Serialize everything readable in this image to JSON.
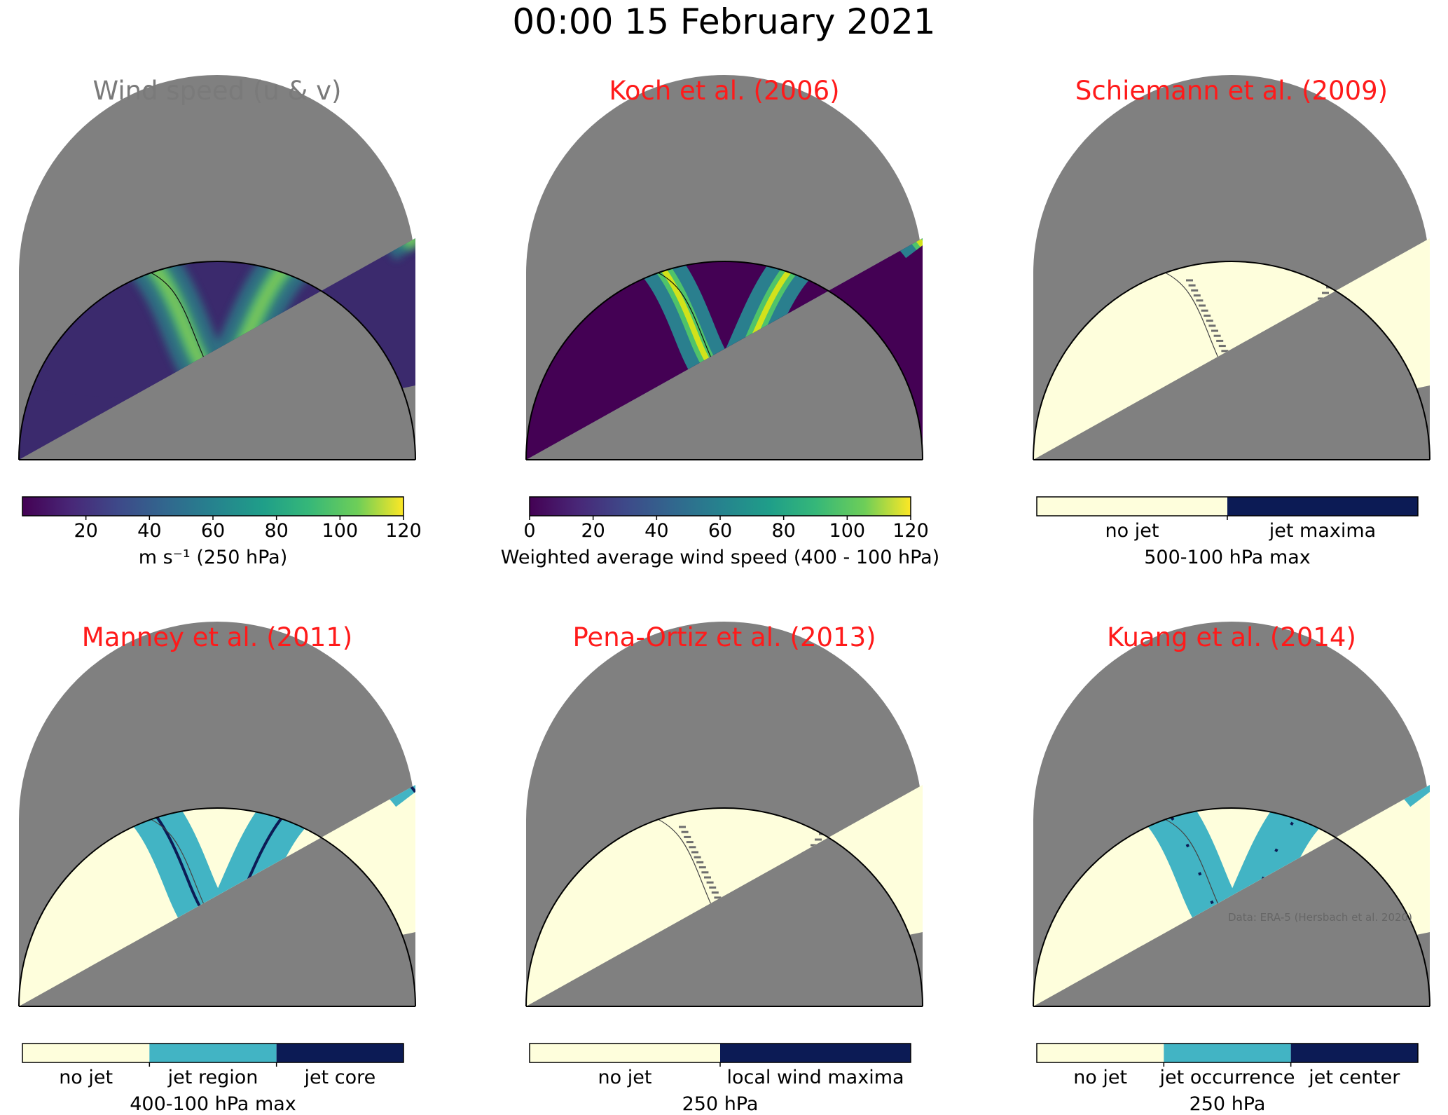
{
  "figure_title": "00:00 15 February 2021",
  "colors": {
    "land_cover": "#fefedc",
    "no_data_gray": "#808080",
    "jet_region": "#42b4c4",
    "jet_core": "#0c1b55",
    "red_title": "#ff1a1a",
    "gray_title": "#7a7a7a"
  },
  "panels": [
    {
      "title": "Wind speed (u & v)",
      "title_color": "#7a7a7a",
      "map_style": "viridis",
      "colorbar": {
        "type": "continuous",
        "ticks": [
          "20",
          "40",
          "60",
          "80",
          "100",
          "120"
        ],
        "tick_values": [
          20,
          40,
          60,
          80,
          100,
          120
        ],
        "range": [
          0,
          120
        ],
        "label": "m s⁻¹ (250 hPa)"
      }
    },
    {
      "title": "Koch et al. (2006)",
      "title_color": "#ff1a1a",
      "map_style": "viridis-masked",
      "colorbar": {
        "type": "continuous",
        "ticks": [
          "0",
          "20",
          "40",
          "60",
          "80",
          "100",
          "120"
        ],
        "tick_values": [
          0,
          20,
          40,
          60,
          80,
          100,
          120
        ],
        "range": [
          0,
          120
        ],
        "label": "Weighted average wind speed (400 - 100 hPa)"
      }
    },
    {
      "title": "Schiemann et al. (2009)",
      "title_color": "#ff1a1a",
      "map_style": "dots",
      "colorbar": {
        "type": "categorical",
        "categories": [
          "no jet",
          "jet maxima"
        ],
        "colors": [
          "#fefedc",
          "#0c1b55"
        ],
        "label": "500-100 hPa max"
      }
    },
    {
      "title": "Manney et al. (2011)",
      "title_color": "#ff1a1a",
      "map_style": "region-core",
      "colorbar": {
        "type": "categorical",
        "categories": [
          "no jet",
          "jet region",
          "jet core"
        ],
        "colors": [
          "#fefedc",
          "#42b4c4",
          "#0c1b55"
        ],
        "label": "400-100 hPa max"
      }
    },
    {
      "title": "Pena-Ortiz et al. (2013)",
      "title_color": "#ff1a1a",
      "map_style": "dots",
      "colorbar": {
        "type": "categorical",
        "categories": [
          "no jet",
          "local wind maxima"
        ],
        "colors": [
          "#fefedc",
          "#0c1b55"
        ],
        "label": "250 hPa"
      }
    },
    {
      "title": "Kuang et al. (2014)",
      "title_color": "#ff1a1a",
      "map_style": "region-center",
      "colorbar": {
        "type": "categorical",
        "categories": [
          "no jet",
          "jet occurrence",
          "jet center"
        ],
        "colors": [
          "#fefedc",
          "#42b4c4",
          "#0c1b55"
        ],
        "label": "250 hPa"
      },
      "credit": "Data: ERA-5 (Hersbach et al. 2020)"
    }
  ]
}
